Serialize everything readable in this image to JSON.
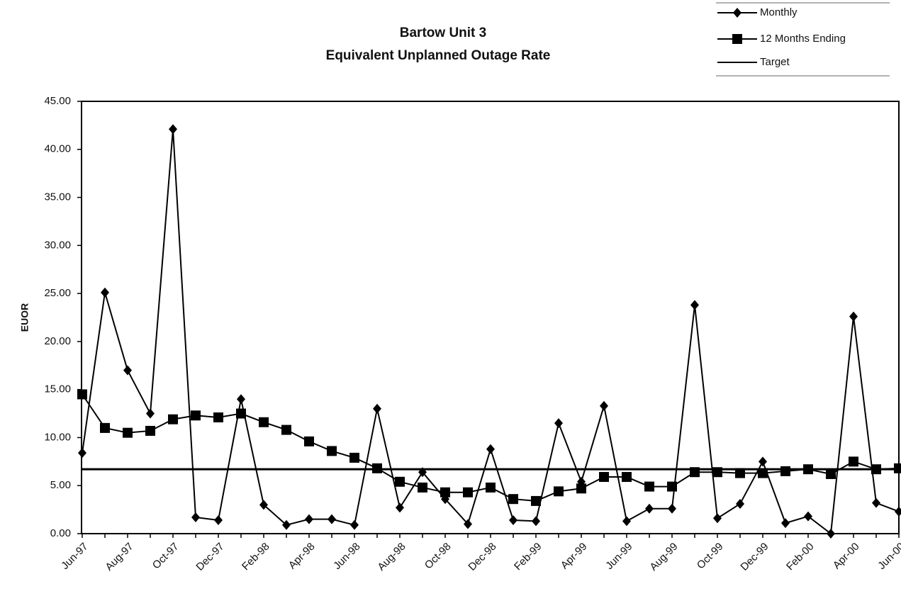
{
  "chart_data": {
    "type": "line",
    "title": "Bartow Unit 3",
    "subtitle": "Equivalent Unplanned Outage Rate",
    "y_label": "EUOR",
    "categories": [
      "Jun-97",
      null,
      "Aug-97",
      null,
      "Oct-97",
      null,
      "Dec-97",
      null,
      "Feb-98",
      null,
      "Apr-98",
      null,
      "Jun-98",
      null,
      "Aug-98",
      null,
      "Oct-98",
      null,
      "Dec-98",
      null,
      "Feb-99",
      null,
      "Apr-99",
      null,
      "Jun-99",
      null,
      "Aug-99",
      null,
      "Oct-99",
      null,
      "Dec-99",
      null,
      "Feb-00",
      null,
      "Apr-00",
      null,
      "Jun-00"
    ],
    "series": [
      {
        "name": "Monthly",
        "color": "#000000",
        "marker": "diamond",
        "values": [
          8.4,
          25.1,
          17.0,
          12.5,
          42.1,
          1.7,
          1.4,
          14.0,
          3.0,
          0.9,
          1.5,
          1.5,
          0.9,
          13.0,
          2.7,
          6.4,
          3.6,
          1.0,
          8.8,
          1.4,
          1.3,
          11.5,
          5.4,
          13.3,
          1.3,
          2.6,
          2.6,
          23.8,
          1.6,
          3.1,
          7.5,
          1.1,
          1.8,
          0.0,
          22.6,
          3.2,
          2.3
        ]
      },
      {
        "name": "12 Months Ending",
        "color": "#000000",
        "marker": "square",
        "values": [
          14.5,
          11.0,
          10.5,
          10.7,
          11.9,
          12.3,
          12.1,
          12.5,
          11.6,
          10.8,
          9.6,
          8.6,
          7.9,
          6.8,
          5.4,
          4.8,
          4.3,
          4.3,
          4.8,
          3.6,
          3.4,
          4.4,
          4.7,
          5.9,
          5.9,
          4.9,
          4.9,
          6.4,
          6.4,
          6.3,
          6.3,
          6.5,
          6.7,
          6.2,
          7.5,
          6.7,
          6.8
        ]
      },
      {
        "name": "Target",
        "color": "#000000",
        "marker": "none",
        "values": [
          6.7,
          6.7,
          6.7,
          6.7,
          6.7,
          6.7,
          6.7,
          6.7,
          6.7,
          6.7,
          6.7,
          6.7,
          6.7,
          6.7,
          6.7,
          6.7,
          6.7,
          6.7,
          6.7,
          6.7,
          6.7,
          6.7,
          6.7,
          6.7,
          6.7,
          6.7,
          6.7,
          6.7,
          6.7,
          6.7,
          6.7,
          6.7,
          6.7,
          6.7,
          6.7,
          6.7,
          6.7
        ]
      }
    ],
    "ylim": [
      0,
      45
    ],
    "yticks": [
      {
        "value": 0,
        "label": "0.00"
      },
      {
        "value": 5,
        "label": "5.00"
      },
      {
        "value": 10,
        "label": "10.00"
      },
      {
        "value": 15,
        "label": "15.00"
      },
      {
        "value": 20,
        "label": "20.00"
      },
      {
        "value": 25,
        "label": "25.00"
      },
      {
        "value": 30,
        "label": "30.00"
      },
      {
        "value": 35,
        "label": "35.00"
      },
      {
        "value": 40,
        "label": "40.00"
      },
      {
        "value": 45,
        "label": "45.00"
      }
    ],
    "grid": false,
    "legend": "top-right"
  }
}
